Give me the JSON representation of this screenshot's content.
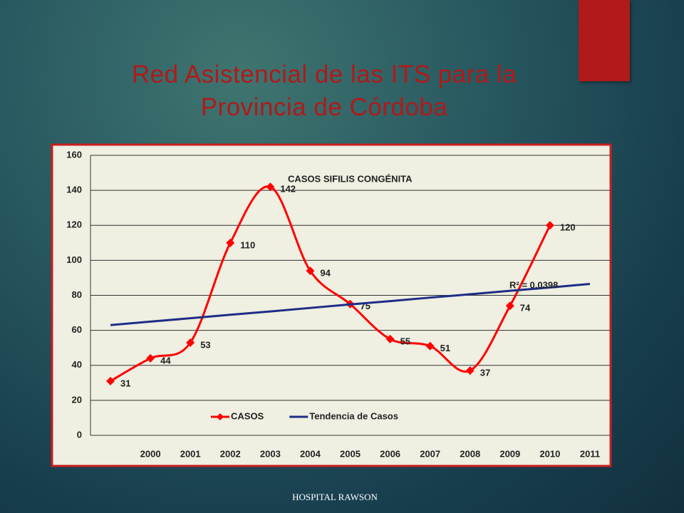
{
  "title": "Red Asistencial de las ITS para la Provincia de Córdoba",
  "footer": "HOSPITAL RAWSON",
  "chart_data": {
    "type": "line",
    "title": "CASOS SIFILIS CONGÉNITA",
    "categories": [
      null,
      "2000",
      "2001",
      "2002",
      "2003",
      "2004",
      "2005",
      "2006",
      "2007",
      "2008",
      "2009",
      "2010",
      "2011"
    ],
    "series": [
      {
        "name": "CASOS",
        "color": "#ff0000",
        "smooth": true,
        "marker": "diamond",
        "data_labels": true,
        "values": [
          31,
          44,
          53,
          110,
          142,
          94,
          75,
          55,
          51,
          37,
          74,
          120,
          null
        ]
      },
      {
        "name": "Tendencia de Casos",
        "color": "#1f2d86",
        "smooth": false,
        "values": [
          63.0,
          65.0,
          66.9,
          68.9,
          70.8,
          72.8,
          74.8,
          76.7,
          78.7,
          80.6,
          82.6,
          84.5,
          86.5
        ]
      }
    ],
    "annotation": "R² = 0,0398",
    "ylim": [
      0,
      160
    ],
    "yticks": [
      0,
      20,
      40,
      60,
      80,
      100,
      120,
      140,
      160
    ],
    "grid": true,
    "legend": "bottom"
  }
}
